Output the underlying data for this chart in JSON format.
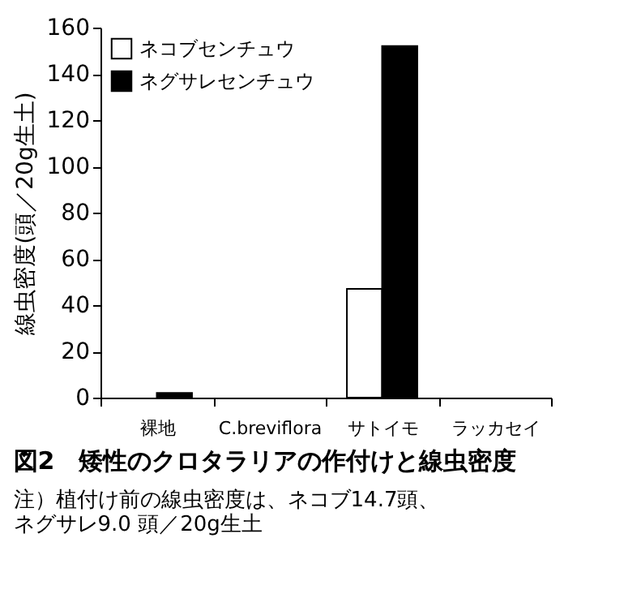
{
  "chart_data": {
    "type": "bar",
    "title": "図2　矮性のクロタラリアの作付けと線虫密度",
    "ylabel": "線虫密度(頭／20g生土)",
    "annotations": [
      "注）植付け前の線虫密度は、ネコブ14.7頭、",
      "ネグサレ9.0 頭／20g生土"
    ],
    "categories": [
      "裸地",
      "C.breviflora",
      "サトイモ",
      "ラッカセイ"
    ],
    "series": [
      {
        "name": "ネコブセンチュウ",
        "color": "#ffffff",
        "values": [
          0,
          0,
          47,
          0
        ]
      },
      {
        "name": "ネグサレセンチュウ",
        "color": "#000000",
        "values": [
          2,
          0,
          152,
          0
        ]
      }
    ],
    "ylim": [
      0,
      160
    ],
    "yticks": [
      0,
      20,
      40,
      60,
      80,
      100,
      120,
      140,
      160
    ],
    "grid": false,
    "legend": "top left"
  }
}
